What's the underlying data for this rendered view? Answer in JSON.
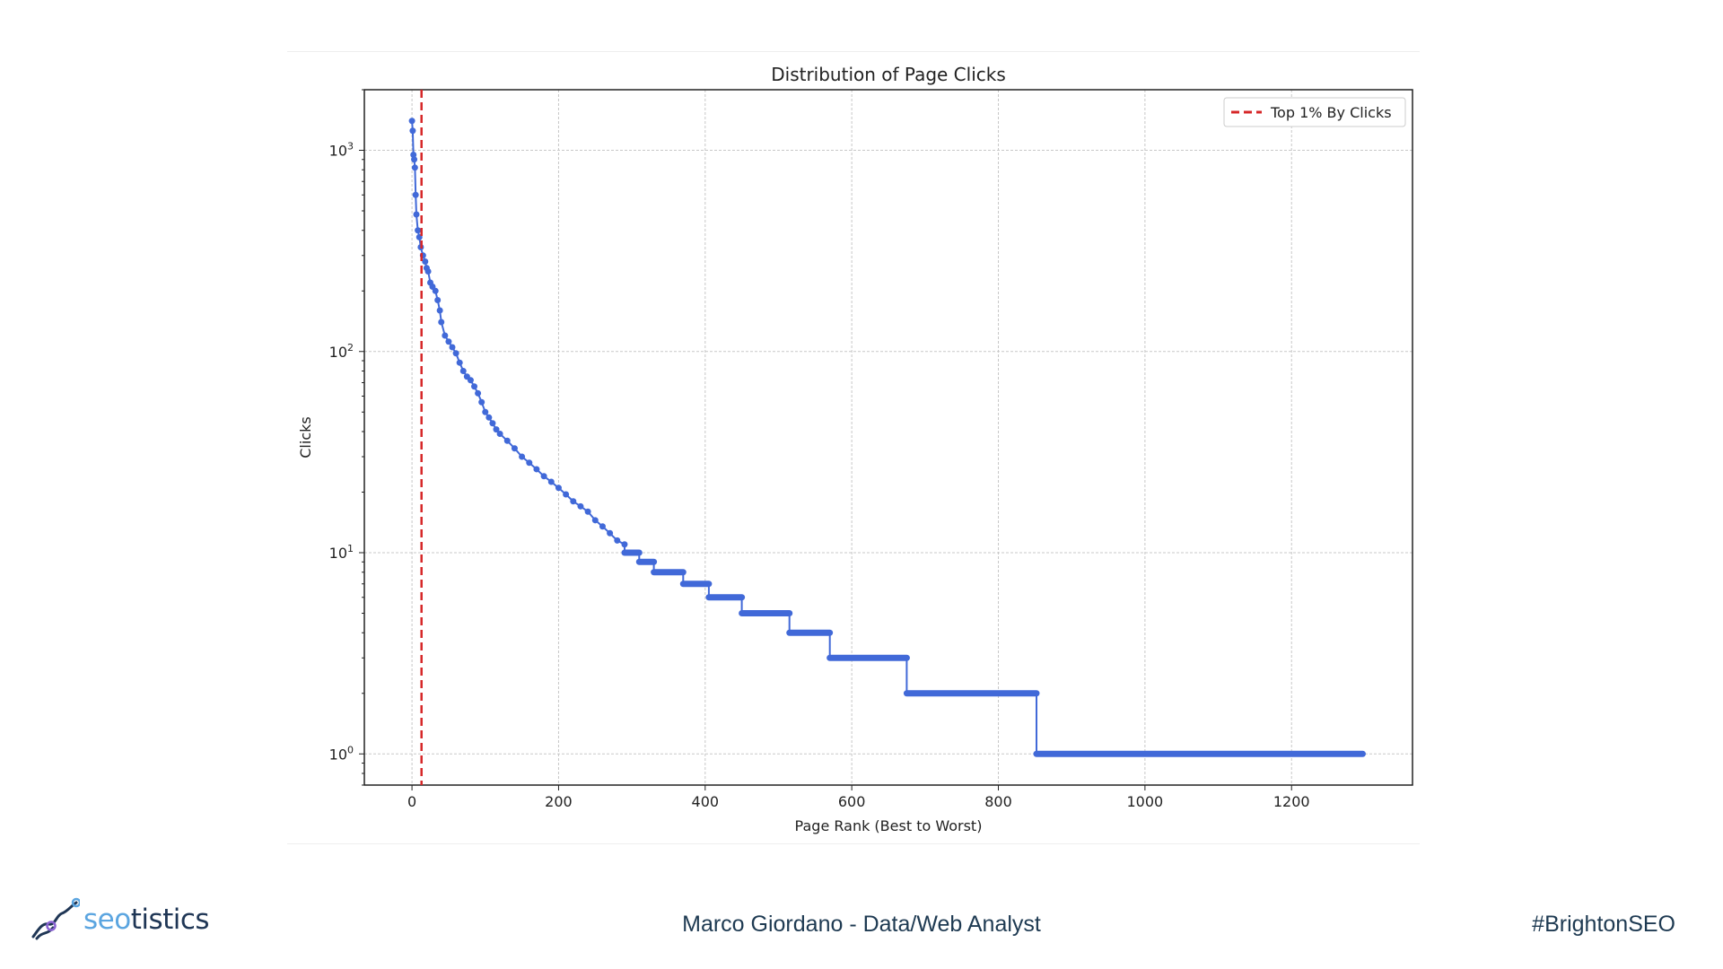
{
  "chart_data": {
    "type": "line",
    "title": "Distribution of Page Clicks",
    "xlabel": "Page Rank (Best to Worst)",
    "ylabel": "Clicks",
    "xscale": "linear",
    "yscale": "log",
    "xlim": [
      -65,
      1365
    ],
    "ylim": [
      0.7,
      2000
    ],
    "xticks": [
      0,
      200,
      400,
      600,
      800,
      1000,
      1200
    ],
    "yticks": [
      {
        "value": 1,
        "base": "10",
        "exp": "0"
      },
      {
        "value": 10,
        "base": "10",
        "exp": "1"
      },
      {
        "value": 100,
        "base": "10",
        "exp": "2"
      },
      {
        "value": 1000,
        "base": "10",
        "exp": "3"
      }
    ],
    "grid": true,
    "legend": {
      "position": "top-right",
      "entries": [
        {
          "label": "Top 1% By Clicks",
          "color": "#d62728",
          "style": "dashed"
        }
      ]
    },
    "vline": {
      "x": 13,
      "label": "Top 1% By Clicks",
      "color": "#d62728"
    },
    "series": [
      {
        "name": "Clicks",
        "color": "#4169d8",
        "curve": [
          [
            0,
            1400
          ],
          [
            1,
            1250
          ],
          [
            2,
            950
          ],
          [
            3,
            900
          ],
          [
            4,
            820
          ],
          [
            5,
            600
          ],
          [
            6,
            480
          ],
          [
            8,
            400
          ],
          [
            10,
            370
          ],
          [
            12,
            330
          ],
          [
            15,
            300
          ],
          [
            18,
            280
          ],
          [
            20,
            260
          ],
          [
            22,
            250
          ],
          [
            25,
            220
          ],
          [
            28,
            210
          ],
          [
            32,
            200
          ],
          [
            35,
            180
          ],
          [
            38,
            160
          ],
          [
            40,
            140
          ],
          [
            45,
            120
          ],
          [
            50,
            112
          ],
          [
            55,
            105
          ],
          [
            60,
            98
          ],
          [
            65,
            88
          ],
          [
            70,
            80
          ],
          [
            75,
            75
          ],
          [
            80,
            72
          ],
          [
            85,
            67
          ],
          [
            90,
            62
          ],
          [
            95,
            56
          ],
          [
            100,
            50
          ],
          [
            105,
            47
          ],
          [
            110,
            44
          ],
          [
            115,
            41
          ],
          [
            120,
            39
          ],
          [
            130,
            36
          ],
          [
            140,
            33
          ],
          [
            150,
            30
          ],
          [
            160,
            28
          ],
          [
            170,
            26
          ],
          [
            180,
            24
          ],
          [
            190,
            22.5
          ],
          [
            200,
            21
          ],
          [
            210,
            19.5
          ],
          [
            220,
            18
          ],
          [
            230,
            17
          ],
          [
            240,
            16
          ],
          [
            250,
            14.5
          ],
          [
            260,
            13.5
          ],
          [
            270,
            12.5
          ],
          [
            280,
            11.5
          ],
          [
            290,
            11
          ]
        ],
        "steps": [
          [
            290,
            10
          ],
          [
            310,
            9
          ],
          [
            330,
            8
          ],
          [
            370,
            7
          ],
          [
            405,
            6
          ],
          [
            450,
            5
          ],
          [
            515,
            4
          ],
          [
            570,
            3
          ],
          [
            675,
            2
          ],
          [
            852,
            1
          ],
          [
            1297,
            1
          ]
        ]
      }
    ]
  },
  "footer": {
    "logo_part1": "seo",
    "logo_part2": "tistics",
    "presenter": "Marco Giordano - Data/Web Analyst",
    "hashtag": "#BrightonSEO"
  }
}
